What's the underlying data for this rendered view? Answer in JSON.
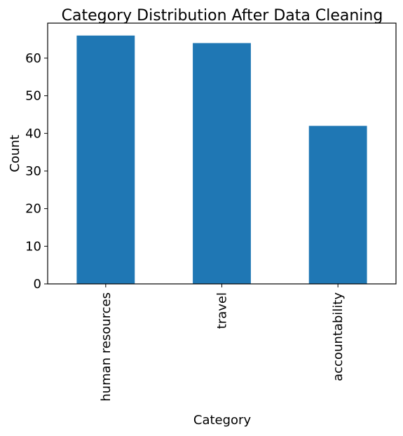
{
  "chart_data": {
    "type": "bar",
    "title": "Category Distribution After Data Cleaning",
    "xlabel": "Category",
    "ylabel": "Count",
    "categories": [
      "human resources",
      "travel",
      "accountability"
    ],
    "values": [
      66,
      64,
      42
    ],
    "ylim": [
      0,
      69.3
    ],
    "yticks": [
      0,
      10,
      20,
      30,
      40,
      50,
      60
    ],
    "grid": false,
    "legend": "none",
    "bar_color": "#1f77b4"
  }
}
